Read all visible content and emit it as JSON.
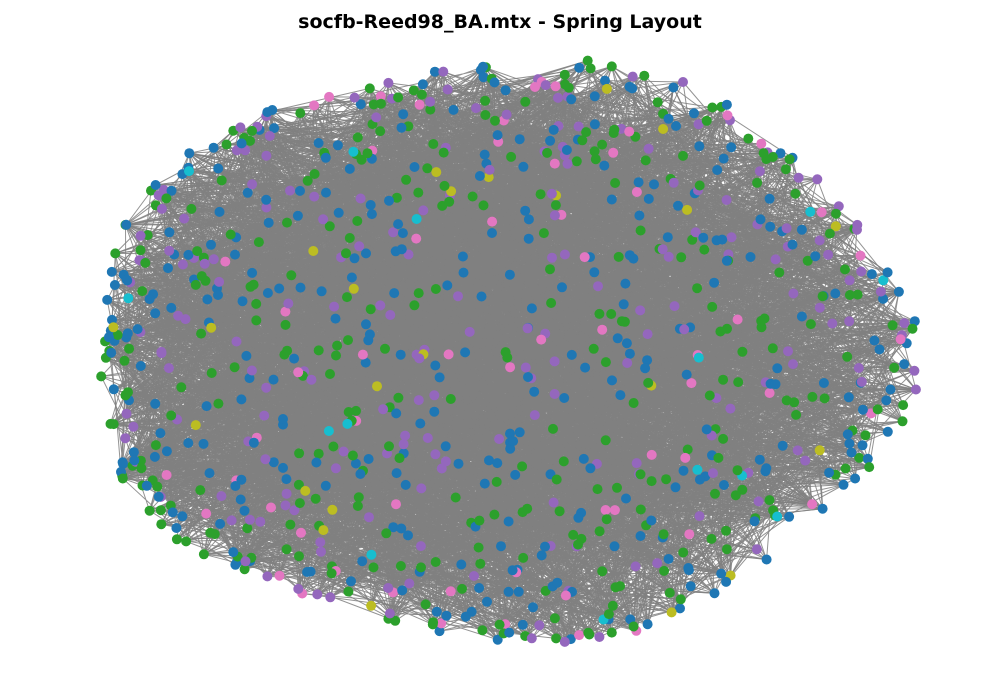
{
  "title": "socfb-Reed98_BA.mtx - Spring Layout",
  "graph": {
    "layout": "spring",
    "edge_color": "#808080",
    "node_colors": [
      "#1f77b4",
      "#2ca02c",
      "#9467bd",
      "#e377c2",
      "#bcbd22",
      "#17becf"
    ],
    "color_weights": [
      0.35,
      0.33,
      0.22,
      0.06,
      0.03,
      0.01
    ],
    "approx_node_count": 962
  }
}
